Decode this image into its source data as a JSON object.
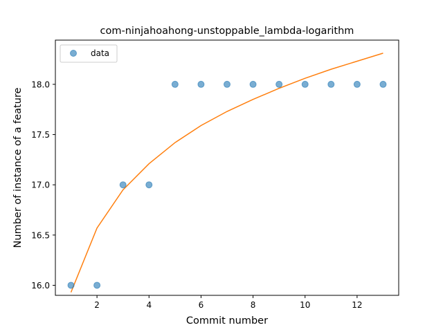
{
  "chart_data": {
    "type": "scatter",
    "title": "com-ninjahoahong-unstoppable_lambda-logarithm",
    "xlabel": "Commit number",
    "ylabel": "Number of instance of a feature",
    "xlim": [
      0.4,
      13.6
    ],
    "ylim": [
      15.9,
      18.44
    ],
    "xticks": [
      2,
      4,
      6,
      8,
      10,
      12
    ],
    "yticks": [
      16.0,
      16.5,
      17.0,
      17.5,
      18.0
    ],
    "ytick_labels": [
      "16.0",
      "16.5",
      "17.0",
      "17.5",
      "18.0"
    ],
    "grid": false,
    "legend_position": "upper-left",
    "series": [
      {
        "name": "data",
        "kind": "scatter",
        "color": "#1f77b4",
        "x": [
          1,
          2,
          3,
          4,
          5,
          6,
          7,
          8,
          9,
          10,
          11,
          12,
          13
        ],
        "y": [
          16,
          16,
          17,
          17,
          18,
          18,
          18,
          18,
          18,
          18,
          18,
          18,
          18
        ]
      },
      {
        "kind": "line",
        "color": "#ff7f0e",
        "x": [
          1,
          2,
          3,
          4,
          5,
          6,
          7,
          8,
          9,
          10,
          11,
          12,
          13
        ],
        "y": [
          15.93,
          16.57,
          16.95,
          17.21,
          17.42,
          17.59,
          17.73,
          17.85,
          17.96,
          18.06,
          18.15,
          18.23,
          18.31
        ]
      }
    ]
  }
}
